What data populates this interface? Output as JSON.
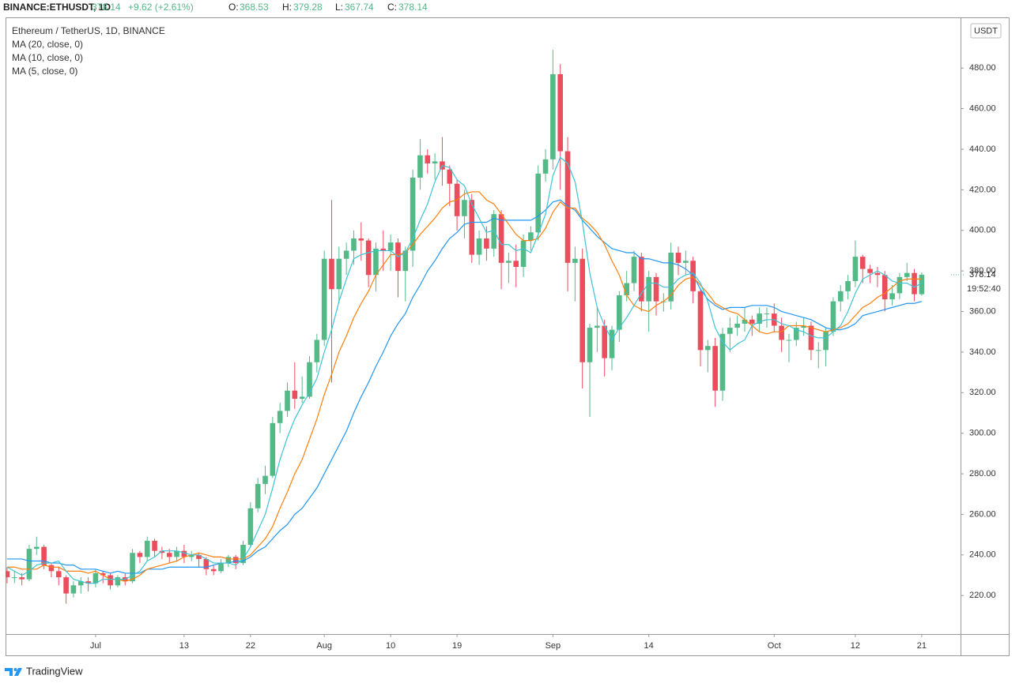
{
  "header": {
    "symbol": "BINANCE:ETHUSDT, 1D",
    "last": 378.14,
    "change": "+9.62 (+2.61%)",
    "open_label": "O:",
    "open": 368.53,
    "high_label": "H:",
    "high": 379.28,
    "low_label": "L:",
    "low": 367.74,
    "close_label": "C:",
    "close": 378.14
  },
  "footer": {
    "brand": "TradingView"
  },
  "chart_data": {
    "type": "candlestick",
    "title": "Ethereum / TetherUS, 1D, BINANCE",
    "currency": "USDT",
    "countdown": "19:52:40",
    "legend": "top-left",
    "grid": false,
    "up_color": "#53b987",
    "down_color": "#eb4d5c",
    "ylim": [
      201,
      505
    ],
    "yticks": [
      {
        "value": 220,
        "label": "220.00"
      },
      {
        "value": 240,
        "label": "240.00"
      },
      {
        "value": 260,
        "label": "260.00"
      },
      {
        "value": 280,
        "label": "280.00"
      },
      {
        "value": 300,
        "label": "300.00"
      },
      {
        "value": 320,
        "label": "320.00"
      },
      {
        "value": 340,
        "label": "340.00"
      },
      {
        "value": 360,
        "label": "360.00"
      },
      {
        "value": 380,
        "label": "380.00"
      },
      {
        "value": 400,
        "label": "400.00"
      },
      {
        "value": 420,
        "label": "420.00"
      },
      {
        "value": 440,
        "label": "440.00"
      },
      {
        "value": 460,
        "label": "460.00"
      },
      {
        "value": 480,
        "label": "480.00"
      }
    ],
    "categories": [
      null,
      null,
      null,
      null,
      null,
      null,
      null,
      null,
      null,
      null,
      null,
      null,
      "Jul",
      null,
      null,
      null,
      null,
      null,
      null,
      null,
      null,
      null,
      null,
      null,
      "13",
      null,
      null,
      null,
      null,
      null,
      null,
      null,
      null,
      "22",
      null,
      null,
      null,
      null,
      null,
      null,
      null,
      null,
      null,
      "Aug",
      null,
      null,
      null,
      null,
      null,
      null,
      null,
      null,
      "10",
      null,
      null,
      null,
      null,
      null,
      null,
      null,
      null,
      "19",
      null,
      null,
      null,
      null,
      null,
      null,
      null,
      null,
      null,
      null,
      null,
      null,
      "Sep",
      null,
      null,
      null,
      null,
      null,
      null,
      null,
      null,
      null,
      null,
      null,
      null,
      "14",
      null,
      null,
      null,
      null,
      null,
      null,
      null,
      null,
      null,
      null,
      null,
      null,
      null,
      null,
      null,
      null,
      "Oct",
      null,
      null,
      null,
      null,
      null,
      null,
      null,
      null,
      null,
      null,
      "12",
      null,
      null,
      null,
      null,
      null,
      null,
      null,
      null,
      "21"
    ],
    "open": [
      232,
      229,
      229,
      228,
      243,
      244,
      235,
      232,
      229,
      221,
      225,
      227,
      226,
      231,
      230,
      225,
      229,
      227,
      241,
      239,
      247,
      242,
      241,
      239,
      242,
      239,
      240,
      238,
      233,
      232,
      236,
      239,
      236,
      245,
      263,
      275,
      279,
      305,
      311,
      321,
      317,
      318,
      335,
      346,
      386,
      371,
      386,
      390,
      396,
      395,
      378,
      391,
      390,
      394,
      380,
      390,
      426,
      437,
      433,
      434,
      430,
      423,
      407,
      415,
      388,
      396,
      391,
      408,
      384,
      385,
      382,
      395,
      399,
      428,
      435,
      477,
      439,
      384,
      386,
      335,
      352,
      353,
      337,
      351,
      368,
      374,
      387,
      365,
      377,
      365,
      365,
      389,
      384,
      385,
      370,
      341,
      343,
      321,
      349,
      352,
      354,
      356,
      354,
      359,
      359,
      353,
      346,
      346,
      352,
      353,
      341,
      341,
      350,
      365,
      370,
      375,
      387,
      381,
      379,
      378,
      366,
      369,
      377,
      379,
      368.53
    ],
    "high": [
      234,
      232,
      231,
      245,
      249,
      245,
      236,
      234,
      230,
      227,
      229,
      229,
      233,
      232,
      231,
      230,
      231,
      243,
      242,
      249,
      248,
      244,
      243,
      244,
      245,
      242,
      241,
      239,
      235,
      238,
      240,
      240,
      247,
      266,
      278,
      284,
      308,
      315,
      325,
      335,
      328,
      338,
      349,
      390,
      415,
      392,
      394,
      400,
      404,
      396,
      394,
      400,
      398,
      396,
      392,
      430,
      445,
      440,
      438,
      446,
      432,
      425,
      420,
      418,
      400,
      402,
      410,
      410,
      389,
      393,
      398,
      402,
      432,
      440,
      489,
      482,
      446,
      392,
      391,
      354,
      362,
      356,
      353,
      370,
      380,
      390,
      389,
      380,
      379,
      369,
      394,
      392,
      390,
      387,
      371,
      346,
      347,
      352,
      357,
      358,
      362,
      358,
      362,
      362,
      364,
      357,
      349,
      355,
      357,
      355,
      345,
      352,
      367,
      373,
      378,
      395,
      388,
      383,
      382,
      380,
      373,
      379,
      384,
      381,
      379.28
    ],
    "low": [
      226,
      226,
      225,
      227,
      240,
      233,
      229,
      225,
      216,
      219,
      221,
      222,
      224,
      226,
      223,
      224,
      225,
      226,
      236,
      237,
      239,
      238,
      236,
      237,
      236,
      237,
      234,
      230,
      230,
      231,
      234,
      233,
      235,
      244,
      261,
      270,
      278,
      300,
      308,
      312,
      315,
      317,
      330,
      343,
      325,
      364,
      378,
      383,
      385,
      372,
      370,
      380,
      380,
      367,
      365,
      382,
      420,
      428,
      425,
      422,
      412,
      400,
      396,
      384,
      383,
      385,
      387,
      371,
      374,
      372,
      377,
      390,
      395,
      424,
      430,
      420,
      370,
      365,
      322,
      308,
      340,
      328,
      331,
      345,
      365,
      370,
      360,
      350,
      358,
      360,
      361,
      378,
      378,
      364,
      333,
      330,
      313,
      316,
      340,
      348,
      350,
      348,
      350,
      352,
      350,
      340,
      335,
      343,
      348,
      336,
      332,
      333,
      348,
      360,
      366,
      372,
      374,
      374,
      372,
      360,
      363,
      366,
      375,
      365,
      367.74
    ],
    "close": [
      229,
      229,
      228,
      243,
      244,
      235,
      232,
      229,
      221,
      225,
      227,
      226,
      231,
      230,
      225,
      229,
      227,
      241,
      239,
      247,
      242,
      241,
      239,
      242,
      239,
      240,
      238,
      233,
      232,
      236,
      239,
      236,
      245,
      263,
      275,
      279,
      305,
      311,
      321,
      317,
      318,
      335,
      346,
      386,
      371,
      386,
      390,
      396,
      395,
      378,
      391,
      390,
      394,
      380,
      390,
      426,
      437,
      433,
      434,
      430,
      423,
      407,
      415,
      388,
      396,
      391,
      408,
      384,
      385,
      382,
      395,
      399,
      428,
      435,
      477,
      439,
      384,
      386,
      335,
      352,
      353,
      337,
      351,
      368,
      374,
      387,
      365,
      377,
      365,
      365,
      389,
      384,
      385,
      370,
      341,
      343,
      321,
      349,
      352,
      354,
      356,
      354,
      359,
      359,
      353,
      346,
      346,
      352,
      353,
      341,
      341,
      350,
      365,
      370,
      375,
      387,
      381,
      379,
      378,
      366,
      369,
      377,
      379,
      368.53,
      378.14
    ],
    "series": [
      {
        "name": "MA (20, close, 0)",
        "color": "#2196f3",
        "values": [
          238,
          238,
          238,
          237,
          237,
          237,
          236,
          236,
          235,
          235,
          233,
          233,
          233,
          232,
          231,
          232,
          231,
          231,
          231,
          233,
          233,
          233,
          234,
          234,
          234,
          234,
          234,
          234,
          235,
          236,
          236,
          237,
          237,
          239,
          242,
          244,
          248,
          252,
          255,
          260,
          263,
          268,
          273,
          280,
          287,
          294,
          301,
          310,
          318,
          325,
          333,
          340,
          348,
          354,
          359,
          367,
          373,
          380,
          385,
          391,
          396,
          399,
          403,
          404,
          404,
          404,
          406,
          405,
          405,
          405,
          405,
          405,
          407,
          410,
          414,
          415,
          412,
          410,
          405,
          401,
          397,
          394,
          391,
          390,
          389,
          389,
          386,
          386,
          385,
          384,
          384,
          383,
          381,
          378,
          371,
          366,
          363,
          361,
          362,
          362,
          362,
          363,
          363,
          363,
          362,
          360,
          359,
          358,
          357,
          356,
          354,
          352,
          351,
          351,
          352,
          354,
          358,
          359,
          360,
          361,
          362,
          363,
          364,
          364,
          365
        ]
      },
      {
        "name": "MA (10, close, 0)",
        "color": "#ff7f0e",
        "values": [
          234,
          234,
          233,
          233,
          233,
          235,
          234,
          234,
          232,
          232,
          232,
          231,
          232,
          230,
          228,
          228,
          227,
          228,
          230,
          233,
          234,
          235,
          236,
          237,
          239,
          240,
          241,
          240,
          239,
          239,
          238,
          238,
          238,
          240,
          244,
          248,
          254,
          263,
          271,
          280,
          287,
          297,
          307,
          319,
          329,
          340,
          348,
          357,
          364,
          370,
          378,
          383,
          388,
          388,
          389,
          393,
          398,
          402,
          406,
          411,
          414,
          415,
          418,
          419,
          419,
          415,
          413,
          408,
          403,
          398,
          395,
          395,
          396,
          401,
          409,
          414,
          411,
          411,
          406,
          403,
          399,
          393,
          385,
          378,
          368,
          363,
          361,
          360,
          363,
          365,
          368,
          373,
          376,
          377,
          373,
          369,
          364,
          362,
          360,
          359,
          356,
          353,
          350,
          349,
          350,
          350,
          353,
          353,
          353,
          352,
          351,
          350,
          351,
          352,
          354,
          358,
          362,
          364,
          367,
          369,
          372,
          375,
          376,
          376,
          376
        ]
      },
      {
        "name": "MA (5, close, 0)",
        "color": "#3cc4d6",
        "values": [
          234,
          232,
          230,
          232,
          235,
          236,
          236,
          237,
          232,
          228,
          227,
          226,
          226,
          228,
          228,
          228,
          228,
          230,
          232,
          237,
          239,
          242,
          242,
          242,
          241,
          240,
          240,
          238,
          236,
          236,
          236,
          235,
          238,
          244,
          252,
          260,
          273,
          287,
          298,
          307,
          314,
          320,
          327,
          340,
          351,
          365,
          376,
          386,
          388,
          389,
          390,
          390,
          390,
          387,
          389,
          396,
          405,
          413,
          424,
          432,
          431,
          425,
          422,
          413,
          406,
          399,
          400,
          393,
          393,
          390,
          391,
          389,
          398,
          408,
          427,
          436,
          433,
          424,
          404,
          379,
          362,
          353,
          346,
          352,
          357,
          363,
          369,
          374,
          374,
          372,
          372,
          376,
          378,
          379,
          374,
          365,
          352,
          345,
          341,
          344,
          346,
          353,
          355,
          356,
          356,
          354,
          353,
          351,
          350,
          348,
          347,
          347,
          350,
          353,
          360,
          369,
          376,
          378,
          380,
          378,
          375,
          374,
          374,
          372,
          374
        ]
      }
    ]
  }
}
